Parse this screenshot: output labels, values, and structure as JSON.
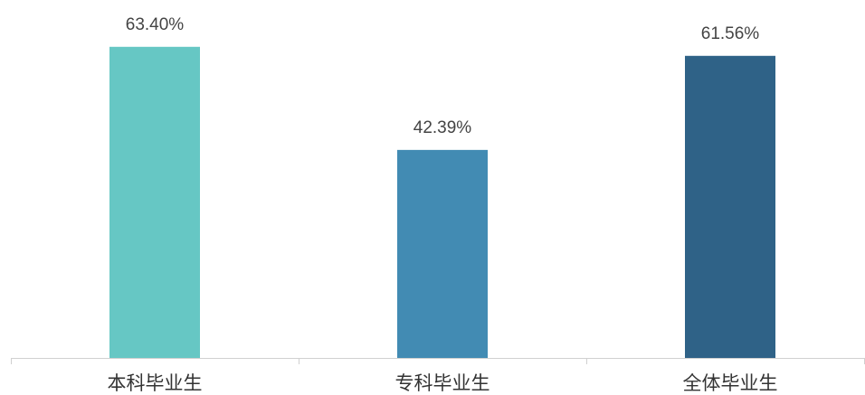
{
  "chart_data": {
    "type": "bar",
    "title": "",
    "xlabel": "",
    "ylabel": "",
    "categories": [
      "本科毕业生",
      "专科毕业生",
      "全体毕业生"
    ],
    "values": [
      63.4,
      42.39,
      61.56
    ],
    "data_labels": [
      "63.40%",
      "42.39%",
      "61.56%"
    ],
    "colors": [
      "#66c7c4",
      "#428bb3",
      "#2f6287"
    ],
    "ylim": [
      0,
      70
    ],
    "grid": false,
    "legend": "none",
    "axis_color": "#d0d0d0"
  }
}
